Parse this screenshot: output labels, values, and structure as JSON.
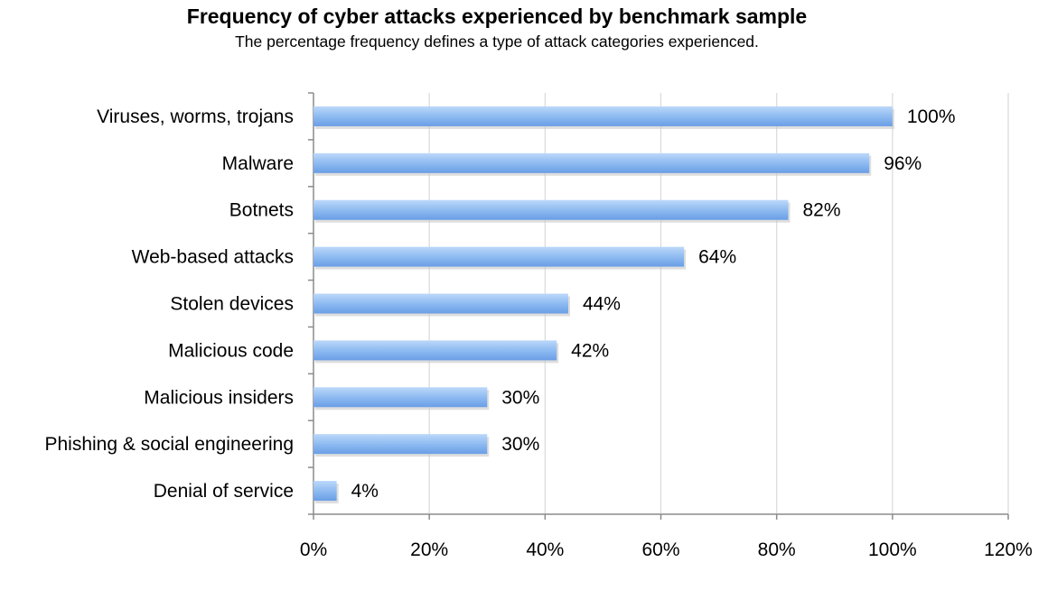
{
  "chart_data": {
    "type": "bar",
    "orientation": "horizontal",
    "title": "Frequency of cyber attacks experienced by benchmark sample",
    "subtitle": "The percentage frequency defines a type of attack categories experienced.",
    "categories": [
      "Viruses, worms, trojans",
      "Malware",
      "Botnets",
      "Web-based attacks",
      "Stolen devices",
      "Malicious code",
      "Malicious insiders",
      "Phishing & social engineering",
      "Denial of service"
    ],
    "values": [
      100,
      96,
      82,
      64,
      44,
      42,
      30,
      30,
      4
    ],
    "value_labels": [
      "100%",
      "96%",
      "82%",
      "64%",
      "44%",
      "42%",
      "30%",
      "30%",
      "4%"
    ],
    "xlim": [
      0,
      120
    ],
    "x_ticks": [
      0,
      20,
      40,
      60,
      80,
      100,
      120
    ],
    "x_tick_labels": [
      "0%",
      "20%",
      "40%",
      "60%",
      "80%",
      "100%",
      "120%"
    ],
    "grid": "vertical",
    "legend": "none",
    "bar_color": "#8ab8f0"
  }
}
